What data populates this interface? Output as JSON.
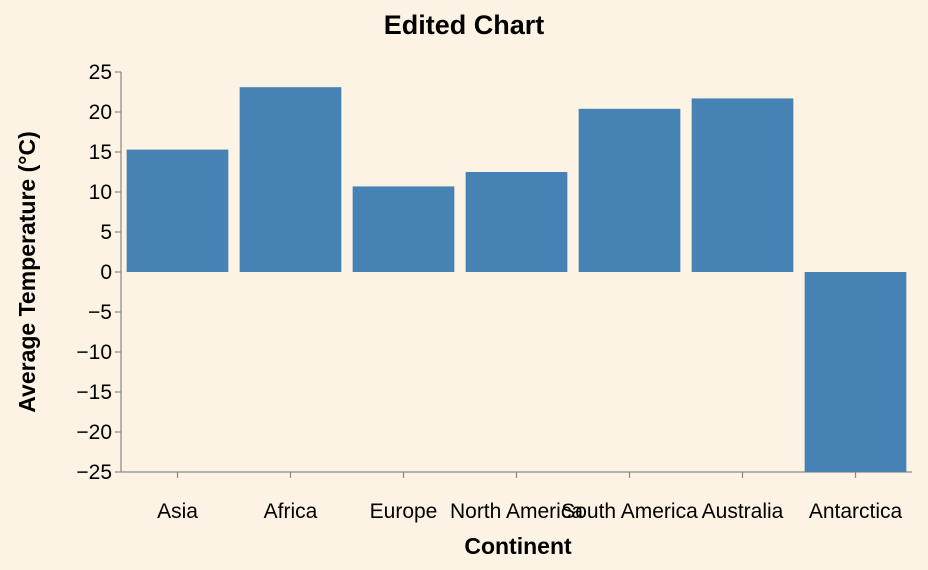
{
  "chart_data": {
    "type": "bar",
    "title": "Edited Chart",
    "xlabel": "Continent",
    "ylabel": "Average Temperature (°C)",
    "categories": [
      "Asia",
      "Africa",
      "Europe",
      "North America",
      "South America",
      "Australia",
      "Antarctica"
    ],
    "values": [
      15.3,
      23.1,
      10.7,
      12.5,
      20.4,
      21.7,
      -25
    ],
    "ylim": [
      -25,
      25
    ],
    "yticks": [
      25,
      20,
      15,
      10,
      5,
      0,
      -5,
      -10,
      -15,
      -20,
      -25
    ],
    "grid": false,
    "legend": "none",
    "bar_color": "#4682b4",
    "background_color": "#fdf3e4"
  }
}
